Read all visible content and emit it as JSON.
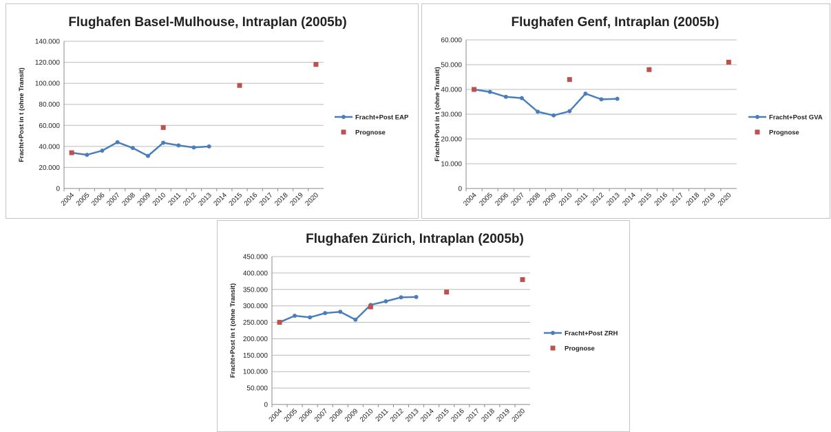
{
  "chart_data": [
    {
      "type": "line",
      "title": "Flughafen Basel-Mulhouse, Intraplan (2005b)",
      "y_label": "Fracht+Post in t (ohne Transit)",
      "categories": [
        "2004",
        "2005",
        "2006",
        "2007",
        "2008",
        "2009",
        "2010",
        "2011",
        "2012",
        "2013",
        "2014",
        "2015",
        "2016",
        "2017",
        "2018",
        "2019",
        "2020"
      ],
      "series": [
        {
          "name": "Fracht+Post EAP",
          "type": "line",
          "color": "#4a7ebb",
          "values": [
            34000,
            32000,
            36000,
            44000,
            38500,
            31000,
            43500,
            41000,
            39000,
            40000,
            null,
            null,
            null,
            null,
            null,
            null,
            null
          ]
        },
        {
          "name": "Prognose",
          "type": "scatter",
          "color": "#c0504d",
          "values": [
            34000,
            null,
            null,
            null,
            null,
            null,
            58000,
            null,
            null,
            null,
            null,
            98000,
            null,
            null,
            null,
            null,
            118000
          ]
        }
      ],
      "ylim": [
        0,
        140000
      ],
      "yticks": [
        0,
        {
          "value": 20000,
          "label": "20.000"
        },
        {
          "value": 40000,
          "label": "40.000"
        },
        {
          "value": 60000,
          "label": "60.000"
        },
        {
          "value": 80000,
          "label": "80.000"
        },
        {
          "value": 100000,
          "label": "100.000"
        },
        {
          "value": 120000,
          "label": "120.000"
        },
        {
          "value": 140000,
          "label": "140.000"
        }
      ],
      "grid": true,
      "legend": "right"
    },
    {
      "type": "line",
      "title": "Flughafen Genf, Intraplan (2005b)",
      "y_label": "Fracht+Post in t (ohne Transit)",
      "categories": [
        "2004",
        "2005",
        "2006",
        "2007",
        "2008",
        "2009",
        "2010",
        "2011",
        "2012",
        "2013",
        "2014",
        "2015",
        "2016",
        "2017",
        "2018",
        "2019",
        "2020"
      ],
      "series": [
        {
          "name": "Fracht+Post GVA",
          "type": "line",
          "color": "#4a7ebb",
          "values": [
            40000,
            39000,
            37000,
            36500,
            31000,
            29500,
            31200,
            38300,
            36000,
            36200,
            null,
            null,
            null,
            null,
            null,
            null,
            null
          ]
        },
        {
          "name": "Prognose",
          "type": "scatter",
          "color": "#c0504d",
          "values": [
            40000,
            null,
            null,
            null,
            null,
            null,
            44000,
            null,
            null,
            null,
            null,
            48000,
            null,
            null,
            null,
            null,
            51000
          ]
        }
      ],
      "ylim": [
        0,
        60000
      ],
      "yticks": [
        0,
        {
          "value": 10000,
          "label": "10.000"
        },
        {
          "value": 20000,
          "label": "20.000"
        },
        {
          "value": 30000,
          "label": "30.000"
        },
        {
          "value": 40000,
          "label": "40.000"
        },
        {
          "value": 50000,
          "label": "50.000"
        },
        {
          "value": 60000,
          "label": "60.000"
        }
      ],
      "grid": true,
      "legend": "right"
    },
    {
      "type": "line",
      "title": "Flughafen Zürich, Intraplan (2005b)",
      "y_label": "Fracht+Post in t (ohne Transit)",
      "categories": [
        "2004",
        "2005",
        "2006",
        "2007",
        "2008",
        "2009",
        "2010",
        "2011",
        "2012",
        "2013",
        "2014",
        "2015",
        "2016",
        "2017",
        "2018",
        "2019",
        "2020"
      ],
      "series": [
        {
          "name": "Fracht+Post ZRH",
          "type": "line",
          "color": "#4a7ebb",
          "values": [
            250000,
            270000,
            265000,
            278000,
            282000,
            258000,
            303000,
            314000,
            326000,
            327000,
            null,
            null,
            null,
            null,
            null,
            null,
            null
          ]
        },
        {
          "name": "Prognose",
          "type": "scatter",
          "color": "#c0504d",
          "values": [
            250000,
            null,
            null,
            null,
            null,
            null,
            297000,
            null,
            null,
            null,
            null,
            342000,
            null,
            null,
            null,
            null,
            380000
          ]
        }
      ],
      "ylim": [
        0,
        450000
      ],
      "yticks": [
        0,
        {
          "value": 50000,
          "label": "50.000"
        },
        {
          "value": 100000,
          "label": "100.000"
        },
        {
          "value": 150000,
          "label": "150.000"
        },
        {
          "value": 200000,
          "label": "200.000"
        },
        {
          "value": 250000,
          "label": "250.000"
        },
        {
          "value": 300000,
          "label": "300.000"
        },
        {
          "value": 350000,
          "label": "350.000"
        },
        {
          "value": 400000,
          "label": "400.000"
        },
        {
          "value": 450000,
          "label": "450.000"
        }
      ],
      "grid": true,
      "legend": "right"
    }
  ]
}
